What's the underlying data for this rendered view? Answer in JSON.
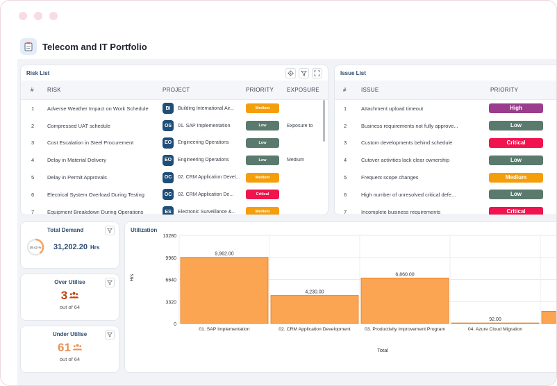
{
  "app": {
    "title": "Telecom and IT Portfolio",
    "icon": "clipboard-icon"
  },
  "risk_list": {
    "title": "Risk List",
    "columns": [
      "#",
      "RISK",
      "PROJECT",
      "PRIORITY",
      "EXPOSURE"
    ],
    "rows": [
      {
        "num": "1",
        "risk": "Adverse Weather Impact on Work Schedule",
        "badge": "BI",
        "project": "Building International Air...",
        "priority": "Medium",
        "exposure": ""
      },
      {
        "num": "2",
        "risk": "Compressed UAT schedule",
        "badge": "OS",
        "project": "01. SAP Implementation",
        "priority": "Low",
        "exposure": "Exposure to"
      },
      {
        "num": "3",
        "risk": "Cost Escalation in Steel Procurement",
        "badge": "EO",
        "project": "Engineering Operations",
        "priority": "Low",
        "exposure": ""
      },
      {
        "num": "4",
        "risk": "Delay in Material Delivery",
        "badge": "EO",
        "project": "Engineering Operations",
        "priority": "Low",
        "exposure": "Medium"
      },
      {
        "num": "5",
        "risk": "Delay in Permit Approvals",
        "badge": "OC",
        "project": "02. CRM Application Devel...",
        "priority": "Medium",
        "exposure": ""
      },
      {
        "num": "6",
        "risk": "Electrical System Overload During Testing",
        "badge": "OC",
        "project": "02. CRM Application De...",
        "priority": "Critical",
        "exposure": ""
      },
      {
        "num": "7",
        "risk": "Equipment Breakdown During Operations",
        "badge": "ES",
        "project": "Electronic Surveillance &...",
        "priority": "Medium",
        "exposure": ""
      }
    ]
  },
  "issue_list": {
    "title": "Issue List",
    "columns": [
      "#",
      "ISSUE",
      "PRIORITY"
    ],
    "rows": [
      {
        "num": "1",
        "issue": "Attachment upload timeout",
        "priority": "High"
      },
      {
        "num": "2",
        "issue": "Business requirements not fully approve...",
        "priority": "Low"
      },
      {
        "num": "3",
        "issue": "Custom developments behind schedule",
        "priority": "Critical"
      },
      {
        "num": "4",
        "issue": "Cutover activities lack clear ownership",
        "priority": "Low"
      },
      {
        "num": "5",
        "issue": "Frequent scope changes",
        "priority": "Medium"
      },
      {
        "num": "6",
        "issue": "High number of unresolved critical defe...",
        "priority": "Low"
      },
      {
        "num": "7",
        "issue": "Incomplete business requirements",
        "priority": "Critical"
      }
    ]
  },
  "priority_colors": {
    "Medium": "#f59e0b",
    "Low": "#5a7a6e",
    "Critical": "#f0134d",
    "High": "#9b3d8c"
  },
  "total_demand": {
    "title": "Total Demand",
    "percent": "39.42 %",
    "percent_value": 39.42,
    "value": "31,202.20",
    "unit": "Hrs"
  },
  "over_utilise": {
    "title": "Over Utilise",
    "value": "3",
    "sub": "out of 64",
    "color": "#c2410c"
  },
  "under_utilise": {
    "title": "Under Utilise",
    "value": "61",
    "sub": "out of 64",
    "color": "#e8955a"
  },
  "utilization": {
    "title": "Utilization",
    "chart_data": {
      "type": "bar",
      "categories": [
        "01. SAP Implementation",
        "02. CRM Application Development",
        "03. Productivity Improvement Program",
        "04. Azure Cloud Migration"
      ],
      "values": [
        9962,
        4230,
        6860,
        92
      ],
      "value_labels": [
        "9,962.00",
        "4,230.00",
        "6,860.00",
        "92.00"
      ],
      "ylabel": "Hrs",
      "xlabel": "Total",
      "yticks": [
        "0",
        "3320",
        "6640",
        "9960",
        "13280"
      ],
      "ylim": [
        0,
        13280
      ],
      "bar_color": "#fba552",
      "bar_border": "#e07a1f"
    }
  }
}
